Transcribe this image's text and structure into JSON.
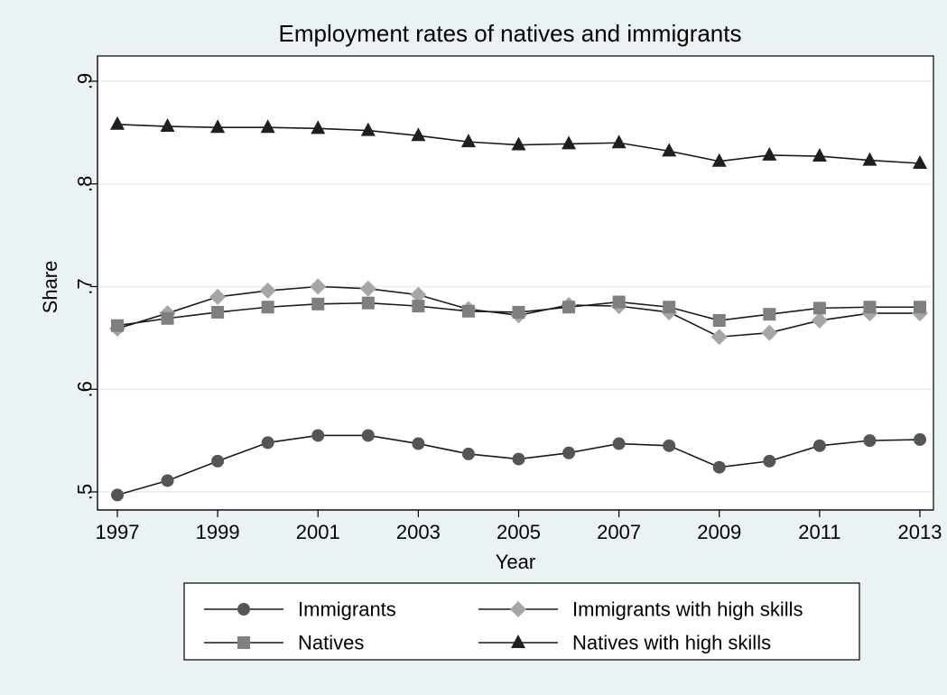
{
  "chart_data": {
    "type": "line",
    "title": "Employment rates of natives and immigrants",
    "xlabel": "Year",
    "ylabel": "Share",
    "xlim": [
      1997,
      2013
    ],
    "ylim": [
      0.5,
      0.9
    ],
    "x": [
      1997,
      1998,
      1999,
      2000,
      2001,
      2002,
      2003,
      2004,
      2005,
      2006,
      2007,
      2008,
      2009,
      2010,
      2011,
      2012,
      2013
    ],
    "x_ticks": [
      1997,
      1999,
      2001,
      2003,
      2005,
      2007,
      2009,
      2011,
      2013
    ],
    "x_tick_labels": [
      "1997",
      "1999",
      "2001",
      "2003",
      "2005",
      "2007",
      "2009",
      "2011",
      "2013"
    ],
    "y_ticks": [
      0.5,
      0.6,
      0.7,
      0.8,
      0.9
    ],
    "y_tick_labels": [
      ".5",
      ".6",
      ".7",
      ".8",
      ".9"
    ],
    "grid": true,
    "legend_placement": "bottom",
    "series": [
      {
        "name": "Immigrants",
        "marker": "circle",
        "color": "#555555",
        "values": [
          0.497,
          0.511,
          0.53,
          0.548,
          0.555,
          0.555,
          0.547,
          0.537,
          0.532,
          0.538,
          0.547,
          0.545,
          0.524,
          0.53,
          0.545,
          0.55,
          0.551
        ]
      },
      {
        "name": "Immigrants with high skills",
        "marker": "diamond",
        "color": "#a6a6a6",
        "values": [
          0.659,
          0.674,
          0.69,
          0.696,
          0.7,
          0.698,
          0.692,
          0.678,
          0.672,
          0.682,
          0.681,
          0.675,
          0.651,
          0.655,
          0.667,
          0.674,
          0.674
        ]
      },
      {
        "name": "Natives",
        "marker": "square",
        "color": "#7f7f7f",
        "values": [
          0.662,
          0.669,
          0.675,
          0.68,
          0.683,
          0.684,
          0.681,
          0.676,
          0.675,
          0.68,
          0.685,
          0.68,
          0.667,
          0.673,
          0.679,
          0.68,
          0.68
        ]
      },
      {
        "name": "Natives with high skills",
        "marker": "triangle",
        "color": "#1f1f1f",
        "values": [
          0.858,
          0.856,
          0.855,
          0.855,
          0.854,
          0.852,
          0.847,
          0.841,
          0.838,
          0.839,
          0.84,
          0.832,
          0.822,
          0.828,
          0.827,
          0.823,
          0.82
        ]
      }
    ]
  }
}
